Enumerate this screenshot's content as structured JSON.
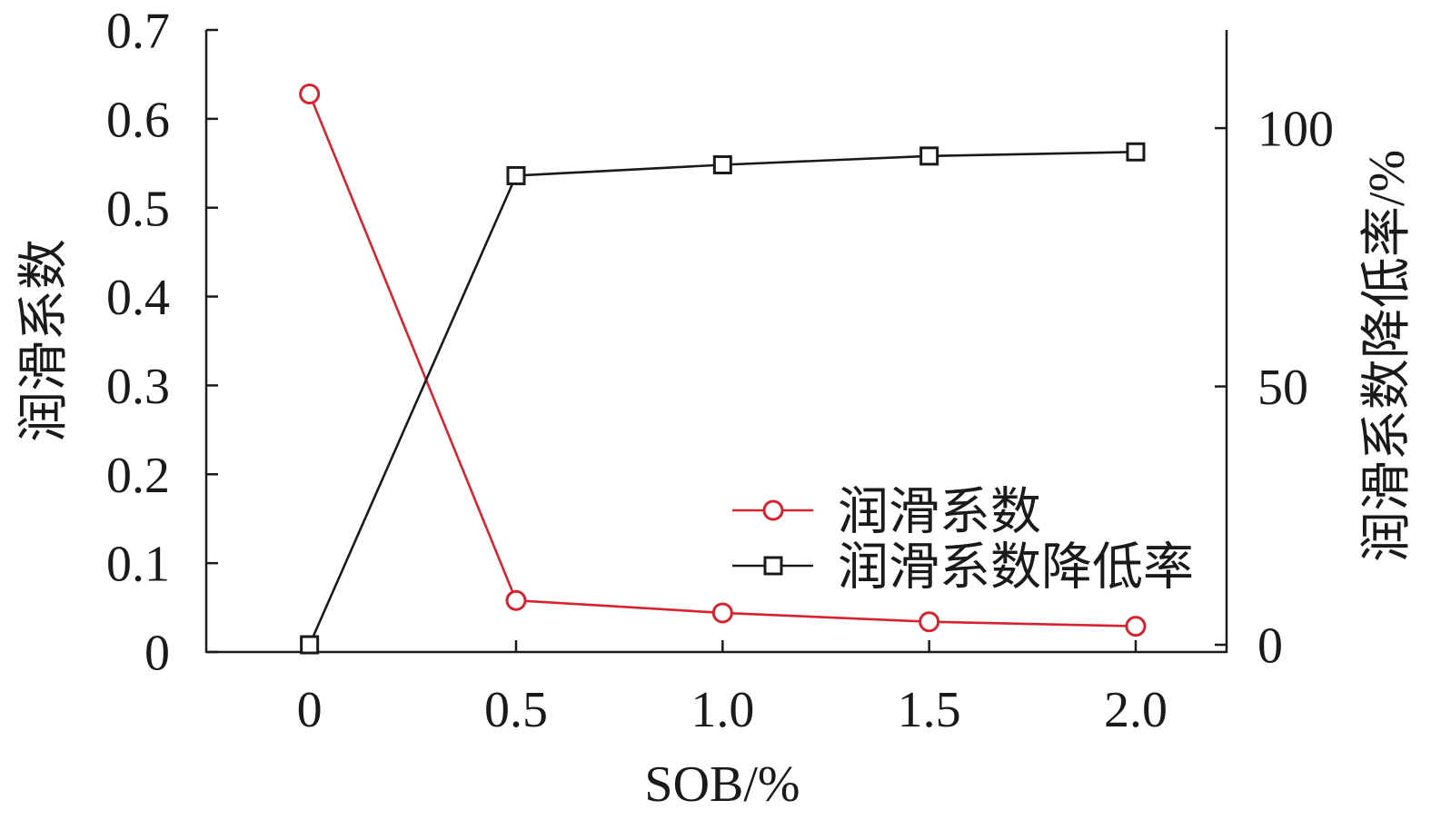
{
  "chart_data": {
    "type": "line",
    "x": [
      0,
      0.5,
      1.0,
      1.5,
      2.0
    ],
    "xticklabels": [
      "0",
      "0.5",
      "1.0",
      "1.5",
      "2.0"
    ],
    "xlabel": "SOB/%",
    "xlim": [
      -0.25,
      2.22
    ],
    "ylabel": "润滑系数",
    "ylim": [
      0,
      0.7
    ],
    "yticks": [
      0,
      0.1,
      0.2,
      0.3,
      0.4,
      0.5,
      0.6,
      0.7
    ],
    "yticklabels": [
      "0",
      "0.1",
      "0.2",
      "0.3",
      "0.4",
      "0.5",
      "0.6",
      "0.7"
    ],
    "ylabel_right": "润滑系数降低率/%",
    "ylim_right": [
      -1.4,
      119
    ],
    "yticks_right": [
      0,
      50,
      100
    ],
    "yticklabels_right": [
      "0",
      "50",
      "100"
    ],
    "grid": false,
    "legend_position": "lower-right",
    "series": [
      {
        "name": "润滑系数",
        "axis": "left",
        "marker": "circle",
        "color": "#d7232e",
        "values": [
          0.628,
          0.058,
          0.044,
          0.034,
          0.029
        ]
      },
      {
        "name": "润滑系数降低率",
        "axis": "right",
        "marker": "square",
        "color": "#1a1a1a",
        "values": [
          0,
          90.8,
          92.9,
          94.6,
          95.4
        ]
      }
    ]
  }
}
